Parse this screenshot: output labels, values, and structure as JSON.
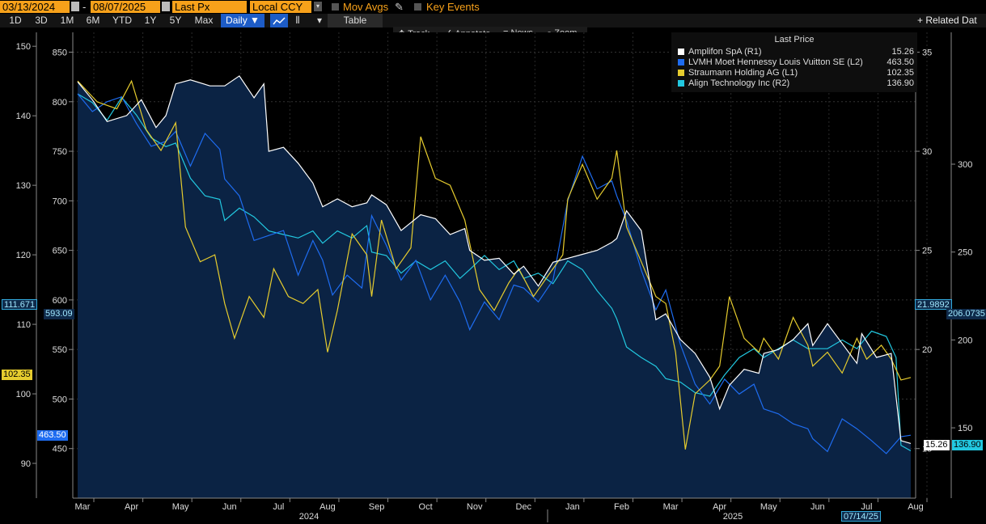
{
  "toolbar": {
    "start_date": "03/13/2024",
    "separator": "-",
    "end_date": "08/07/2025",
    "field": "Last Px",
    "currency": "Local CCY",
    "mov_avgs": "Mov Avgs",
    "key_events": "Key Events"
  },
  "ranges": [
    "1D",
    "3D",
    "1M",
    "6M",
    "YTD",
    "1Y",
    "5Y",
    "Max"
  ],
  "frequency": "Daily ▼",
  "table_label": "Table",
  "related_label": "+ Related Dat",
  "tools": {
    "track": "Track",
    "annotate": "Annotate",
    "news": "News",
    "zoom": "Zoom"
  },
  "colors": {
    "background": "#000000",
    "plot_fill": "#0b2344",
    "amplifon": "#ffffff",
    "lvmh": "#1e6cf0",
    "straumann": "#e6cc2e",
    "align": "#22c8e0"
  },
  "legend": {
    "title": "Last Price",
    "items": [
      {
        "name": "Amplifon SpA  (R1)",
        "value": "15.26",
        "color": "#ffffff"
      },
      {
        "name": "LVMH Moet Hennessy Louis Vuitton SE  (L2)",
        "value": "463.50",
        "color": "#1e6cf0"
      },
      {
        "name": "Straumann Holding AG  (L1)",
        "value": "102.35",
        "color": "#e6cc2e"
      },
      {
        "name": "Align Technology Inc  (R2)",
        "value": "136.90",
        "color": "#22c8e0"
      }
    ]
  },
  "tags": {
    "l1_hover": "111.671",
    "l2_hover": "593.09",
    "l1_last": "102.35",
    "l2_last": "463.50",
    "r1_hover": "21.9892",
    "r2_hover": "206.0735",
    "r1_last": "15.26",
    "r2_last": "136.90",
    "date_cursor": "07/14/25"
  },
  "chart_data": {
    "type": "line",
    "x_months": [
      "Mar",
      "Apr",
      "May",
      "Jun",
      "Jul",
      "Aug",
      "Sep",
      "Oct",
      "Nov",
      "Dec",
      "Jan",
      "Feb",
      "Mar",
      "Apr",
      "May",
      "Jun",
      "Jul",
      "Aug"
    ],
    "x_years": [
      "2024",
      "2025"
    ],
    "axes": {
      "L1": {
        "range": [
          85,
          152
        ],
        "ticks": [
          90,
          100,
          110,
          120,
          130,
          140,
          150
        ]
      },
      "L2": {
        "range": [
          400,
          870
        ],
        "ticks": [
          450,
          500,
          550,
          600,
          650,
          700,
          750,
          800,
          850
        ]
      },
      "R1": {
        "range": [
          12.5,
          36
        ],
        "ticks": [
          15,
          20,
          25,
          30,
          35
        ]
      },
      "R2": {
        "range": [
          110,
          375
        ],
        "ticks": [
          150,
          200,
          250,
          300
        ]
      }
    },
    "series": [
      {
        "name": "Amplifon SpA (R1)",
        "axis": "R1",
        "color": "#ffffff",
        "points": [
          [
            0,
            33.5
          ],
          [
            0.3,
            32.6
          ],
          [
            0.6,
            31.5
          ],
          [
            1,
            31.8
          ],
          [
            1.3,
            32.6
          ],
          [
            1.6,
            31.2
          ],
          [
            1.8,
            31.8
          ],
          [
            2.0,
            33.4
          ],
          [
            2.3,
            33.6
          ],
          [
            2.7,
            33.3
          ],
          [
            3,
            33.3
          ],
          [
            3.3,
            33.8
          ],
          [
            3.6,
            32.7
          ],
          [
            3.8,
            33.4
          ],
          [
            3.9,
            30.0
          ],
          [
            4.2,
            30.2
          ],
          [
            4.5,
            29.4
          ],
          [
            4.8,
            28.4
          ],
          [
            5,
            27.2
          ],
          [
            5.3,
            27.6
          ],
          [
            5.6,
            27.2
          ],
          [
            5.9,
            27.4
          ],
          [
            6,
            27.8
          ],
          [
            6.3,
            27.3
          ],
          [
            6.6,
            26.0
          ],
          [
            7,
            26.8
          ],
          [
            7.3,
            26.6
          ],
          [
            7.6,
            25.8
          ],
          [
            7.9,
            26.1
          ],
          [
            8,
            25.0
          ],
          [
            8.3,
            24.5
          ],
          [
            8.6,
            24.6
          ],
          [
            8.9,
            23.8
          ],
          [
            9.1,
            24.2
          ],
          [
            9.4,
            23.2
          ],
          [
            9.7,
            24.4
          ],
          [
            10,
            24.6
          ],
          [
            10.3,
            24.8
          ],
          [
            10.6,
            25.0
          ],
          [
            10.9,
            25.4
          ],
          [
            11,
            25.6
          ],
          [
            11.2,
            27.0
          ],
          [
            11.5,
            26.0
          ],
          [
            11.8,
            21.5
          ],
          [
            12,
            21.8
          ],
          [
            12.3,
            20.5
          ],
          [
            12.6,
            19.8
          ],
          [
            12.9,
            18.6
          ],
          [
            13.1,
            17.0
          ],
          [
            13.3,
            18.2
          ],
          [
            13.6,
            19.0
          ],
          [
            13.9,
            18.8
          ],
          [
            14,
            19.8
          ],
          [
            14.3,
            20.0
          ],
          [
            14.6,
            20.5
          ],
          [
            14.9,
            21.3
          ],
          [
            15,
            20.2
          ],
          [
            15.3,
            21.3
          ],
          [
            15.6,
            20.3
          ],
          [
            15.9,
            19.3
          ],
          [
            16,
            20.8
          ],
          [
            16.3,
            19.6
          ],
          [
            16.6,
            19.8
          ],
          [
            16.8,
            15.4
          ],
          [
            17,
            15.26
          ]
        ]
      },
      {
        "name": "LVMH Moet Hennessy Louis Vuitton SE (L2)",
        "axis": "L2",
        "color": "#1e6cf0",
        "points": [
          [
            0,
            808
          ],
          [
            0.3,
            790
          ],
          [
            0.6,
            800
          ],
          [
            0.9,
            805
          ],
          [
            1.2,
            778
          ],
          [
            1.5,
            755
          ],
          [
            1.8,
            760
          ],
          [
            2,
            770
          ],
          [
            2.3,
            735
          ],
          [
            2.6,
            768
          ],
          [
            2.9,
            752
          ],
          [
            3,
            722
          ],
          [
            3.3,
            705
          ],
          [
            3.6,
            660
          ],
          [
            3.9,
            665
          ],
          [
            4.2,
            670
          ],
          [
            4.5,
            625
          ],
          [
            4.8,
            660
          ],
          [
            5,
            640
          ],
          [
            5.2,
            605
          ],
          [
            5.5,
            625
          ],
          [
            5.8,
            612
          ],
          [
            6,
            685
          ],
          [
            6.3,
            655
          ],
          [
            6.6,
            620
          ],
          [
            6.9,
            640
          ],
          [
            7.2,
            600
          ],
          [
            7.5,
            625
          ],
          [
            7.8,
            598
          ],
          [
            8,
            570
          ],
          [
            8.3,
            598
          ],
          [
            8.6,
            580
          ],
          [
            8.9,
            615
          ],
          [
            9.1,
            612
          ],
          [
            9.4,
            598
          ],
          [
            9.7,
            620
          ],
          [
            10,
            700
          ],
          [
            10.3,
            745
          ],
          [
            10.6,
            712
          ],
          [
            10.9,
            720
          ],
          [
            11,
            705
          ],
          [
            11.2,
            680
          ],
          [
            11.5,
            630
          ],
          [
            11.8,
            590
          ],
          [
            12,
            610
          ],
          [
            12.3,
            555
          ],
          [
            12.6,
            515
          ],
          [
            12.9,
            495
          ],
          [
            13.2,
            520
          ],
          [
            13.5,
            505
          ],
          [
            13.8,
            515
          ],
          [
            14,
            490
          ],
          [
            14.3,
            485
          ],
          [
            14.6,
            475
          ],
          [
            14.9,
            470
          ],
          [
            15,
            460
          ],
          [
            15.3,
            447
          ],
          [
            15.6,
            480
          ],
          [
            15.9,
            470
          ],
          [
            16.2,
            458
          ],
          [
            16.5,
            445
          ],
          [
            16.8,
            462
          ],
          [
            17,
            463.5
          ]
        ]
      },
      {
        "name": "Straumann Holding AG (L1)",
        "axis": "L1",
        "color": "#e6cc2e",
        "points": [
          [
            0,
            145
          ],
          [
            0.4,
            142
          ],
          [
            0.8,
            141
          ],
          [
            1.1,
            145
          ],
          [
            1.4,
            138
          ],
          [
            1.7,
            135
          ],
          [
            2,
            139
          ],
          [
            2.2,
            124
          ],
          [
            2.5,
            119
          ],
          [
            2.8,
            120
          ],
          [
            3,
            113
          ],
          [
            3.2,
            108
          ],
          [
            3.5,
            114
          ],
          [
            3.8,
            111
          ],
          [
            4,
            118
          ],
          [
            4.3,
            114
          ],
          [
            4.6,
            113
          ],
          [
            4.9,
            115
          ],
          [
            5.1,
            106
          ],
          [
            5.3,
            112
          ],
          [
            5.6,
            123
          ],
          [
            5.9,
            120
          ],
          [
            6,
            114
          ],
          [
            6.2,
            125
          ],
          [
            6.5,
            118
          ],
          [
            6.8,
            121
          ],
          [
            7.0,
            137
          ],
          [
            7.3,
            131
          ],
          [
            7.6,
            130
          ],
          [
            7.9,
            125
          ],
          [
            8.2,
            115
          ],
          [
            8.5,
            112
          ],
          [
            8.8,
            116
          ],
          [
            9,
            118
          ],
          [
            9.3,
            114
          ],
          [
            9.6,
            117
          ],
          [
            9.9,
            120
          ],
          [
            10,
            128
          ],
          [
            10.3,
            133
          ],
          [
            10.6,
            128
          ],
          [
            10.9,
            131
          ],
          [
            11,
            135
          ],
          [
            11.2,
            124
          ],
          [
            11.5,
            119
          ],
          [
            11.8,
            114
          ],
          [
            12,
            113
          ],
          [
            12.2,
            106
          ],
          [
            12.4,
            92
          ],
          [
            12.6,
            100
          ],
          [
            12.9,
            102
          ],
          [
            13.1,
            104
          ],
          [
            13.3,
            114
          ],
          [
            13.6,
            108
          ],
          [
            13.9,
            106
          ],
          [
            14,
            108
          ],
          [
            14.3,
            105
          ],
          [
            14.6,
            111
          ],
          [
            14.9,
            107
          ],
          [
            15,
            104
          ],
          [
            15.3,
            106
          ],
          [
            15.6,
            103
          ],
          [
            15.9,
            108
          ],
          [
            16.1,
            105
          ],
          [
            16.4,
            107
          ],
          [
            16.6,
            105
          ],
          [
            16.8,
            102
          ],
          [
            17,
            102.35
          ]
        ]
      },
      {
        "name": "Align Technology Inc (R2)",
        "axis": "R2",
        "color": "#22c8e0",
        "points": [
          [
            0,
            340
          ],
          [
            0.3,
            335
          ],
          [
            0.6,
            325
          ],
          [
            0.9,
            338
          ],
          [
            1.2,
            328
          ],
          [
            1.5,
            315
          ],
          [
            1.8,
            310
          ],
          [
            2,
            312
          ],
          [
            2.3,
            292
          ],
          [
            2.6,
            282
          ],
          [
            2.9,
            280
          ],
          [
            3,
            268
          ],
          [
            3.3,
            275
          ],
          [
            3.6,
            270
          ],
          [
            3.9,
            262
          ],
          [
            4.2,
            260
          ],
          [
            4.5,
            258
          ],
          [
            4.8,
            262
          ],
          [
            5,
            255
          ],
          [
            5.3,
            262
          ],
          [
            5.6,
            258
          ],
          [
            5.9,
            265
          ],
          [
            6,
            250
          ],
          [
            6.3,
            248
          ],
          [
            6.6,
            238
          ],
          [
            6.9,
            245
          ],
          [
            7.2,
            240
          ],
          [
            7.5,
            245
          ],
          [
            7.8,
            235
          ],
          [
            8,
            240
          ],
          [
            8.3,
            248
          ],
          [
            8.6,
            240
          ],
          [
            8.9,
            245
          ],
          [
            9.1,
            235
          ],
          [
            9.4,
            238
          ],
          [
            9.7,
            232
          ],
          [
            10,
            245
          ],
          [
            10.3,
            240
          ],
          [
            10.6,
            228
          ],
          [
            10.9,
            218
          ],
          [
            11,
            212
          ],
          [
            11.2,
            196
          ],
          [
            11.5,
            190
          ],
          [
            11.8,
            185
          ],
          [
            12,
            178
          ],
          [
            12.3,
            176
          ],
          [
            12.6,
            170
          ],
          [
            12.9,
            168
          ],
          [
            13.2,
            180
          ],
          [
            13.5,
            190
          ],
          [
            13.8,
            195
          ],
          [
            14,
            190
          ],
          [
            14.3,
            195
          ],
          [
            14.6,
            200
          ],
          [
            14.9,
            195
          ],
          [
            15,
            195
          ],
          [
            15.3,
            195
          ],
          [
            15.6,
            200
          ],
          [
            15.9,
            195
          ],
          [
            16.2,
            205
          ],
          [
            16.5,
            202
          ],
          [
            16.7,
            190
          ],
          [
            16.8,
            140
          ],
          [
            17,
            136.9
          ]
        ]
      }
    ]
  }
}
